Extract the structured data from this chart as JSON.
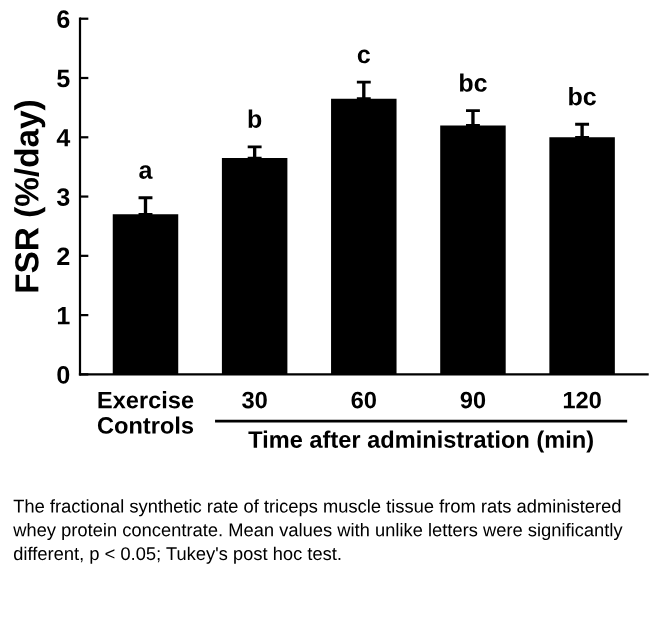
{
  "chart_data": {
    "type": "bar",
    "ylabel": "FSR (%/day)",
    "xlabel": "Time after administration (min)",
    "categories": [
      "Exercise\nControls",
      "30",
      "60",
      "90",
      "120"
    ],
    "values": [
      2.7,
      3.65,
      4.65,
      4.2,
      4.0
    ],
    "errors": [
      0.28,
      0.19,
      0.28,
      0.25,
      0.22
    ],
    "color": "#000000",
    "ylim": [
      0,
      6
    ],
    "yticks": [
      0,
      1,
      2,
      3,
      4,
      5,
      6
    ],
    "grid": false,
    "annotations": [
      "a",
      "b",
      "c",
      "bc",
      "bc",
      "The fractional synthetic rate of triceps muscle tissue from rats administered whey protein concentrate. Mean values with unlike letters were significantly different, p < 0.05; Tukey's post hoc test."
    ]
  }
}
